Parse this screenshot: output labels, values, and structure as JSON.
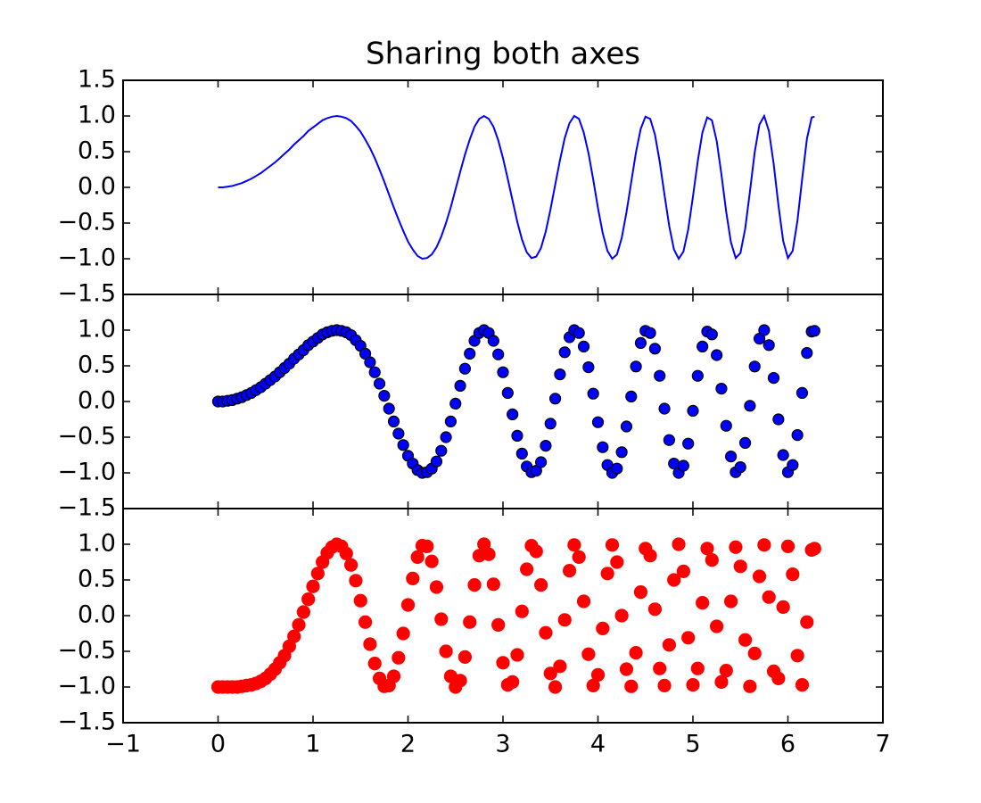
{
  "chart_data": [
    {
      "type": "line",
      "title": "Sharing both axes",
      "color": "#0000ff",
      "x": [
        0,
        0.05,
        0.1,
        0.15,
        0.2,
        0.25,
        0.3,
        0.35,
        0.4,
        0.45,
        0.5,
        0.55,
        0.6,
        0.65,
        0.7,
        0.75,
        0.8,
        0.85,
        0.9,
        0.95,
        1,
        1.05,
        1.1,
        1.15,
        1.2,
        1.25,
        1.3,
        1.35,
        1.4,
        1.45,
        1.5,
        1.55,
        1.6,
        1.65,
        1.7,
        1.75,
        1.8,
        1.85,
        1.9,
        1.95,
        2,
        2.05,
        2.1,
        2.15,
        2.2,
        2.25,
        2.3,
        2.35,
        2.4,
        2.45,
        2.5,
        2.55,
        2.6,
        2.65,
        2.7,
        2.75,
        2.8,
        2.85,
        2.9,
        2.95,
        3,
        3.05,
        3.1,
        3.15,
        3.2,
        3.25,
        3.3,
        3.35,
        3.4,
        3.45,
        3.5,
        3.55,
        3.6,
        3.65,
        3.7,
        3.75,
        3.8,
        3.85,
        3.9,
        3.95,
        4,
        4.05,
        4.1,
        4.15,
        4.2,
        4.25,
        4.3,
        4.35,
        4.4,
        4.45,
        4.5,
        4.55,
        4.6,
        4.65,
        4.7,
        4.75,
        4.8,
        4.85,
        4.9,
        4.95,
        5,
        5.05,
        5.1,
        5.15,
        5.2,
        5.25,
        5.3,
        5.35,
        5.4,
        5.45,
        5.5,
        5.55,
        5.6,
        5.65,
        5.7,
        5.75,
        5.8,
        5.85,
        5.9,
        5.95,
        6,
        6.05,
        6.1,
        6.15,
        6.2,
        6.25,
        6.28
      ],
      "values": [
        0,
        0,
        0.01,
        0.02,
        0.04,
        0.06,
        0.09,
        0.12,
        0.16,
        0.2,
        0.25,
        0.3,
        0.35,
        0.41,
        0.47,
        0.53,
        0.6,
        0.66,
        0.72,
        0.79,
        0.84,
        0.89,
        0.94,
        0.97,
        0.99,
        1,
        0.99,
        0.97,
        0.93,
        0.86,
        0.78,
        0.67,
        0.55,
        0.41,
        0.25,
        0.08,
        -0.1,
        -0.28,
        -0.45,
        -0.61,
        -0.76,
        -0.87,
        -0.96,
        -1,
        -0.99,
        -0.94,
        -0.84,
        -0.69,
        -0.5,
        -0.28,
        -0.03,
        0.22,
        0.46,
        0.67,
        0.85,
        0.96,
        1,
        0.96,
        0.85,
        0.66,
        0.41,
        0.12,
        -0.18,
        -0.48,
        -0.73,
        -0.91,
        -0.99,
        -0.97,
        -0.85,
        -0.62,
        -0.31,
        0.04,
        0.38,
        0.69,
        0.9,
        1,
        0.96,
        0.77,
        0.48,
        0.11,
        -0.29,
        -0.64,
        -0.89,
        -1,
        -0.94,
        -0.71,
        -0.35,
        0.07,
        0.49,
        0.82,
        0.99,
        0.96,
        0.74,
        0.36,
        -0.1,
        -0.54,
        -0.87,
        -1,
        -0.9,
        -0.59,
        -0.13,
        0.36,
        0.77,
        0.98,
        0.94,
        0.65,
        0.18,
        -0.34,
        -0.77,
        -0.99,
        -0.92,
        -0.58,
        -0.06,
        0.49,
        0.88,
        1,
        0.79,
        0.33,
        -0.25,
        -0.75,
        -0.99,
        -0.89,
        -0.47,
        0.12,
        0.68,
        0.98,
        0.99
      ],
      "ylim": [
        -1.5,
        1.5
      ],
      "yticks": [
        {
          "value": -1.5,
          "label": "−1.5"
        },
        {
          "value": -1,
          "label": "−1.0"
        },
        {
          "value": -0.5,
          "label": "−0.5"
        },
        {
          "value": 0,
          "label": "0.0"
        },
        0.5,
        {
          "value": 1,
          "label": "1.0"
        },
        1.5
      ]
    },
    {
      "type": "scatter",
      "color": "#0000ff",
      "edgecolor": "#000000",
      "x": [
        0,
        0.05,
        0.1,
        0.15,
        0.2,
        0.25,
        0.3,
        0.35,
        0.4,
        0.45,
        0.5,
        0.55,
        0.6,
        0.65,
        0.7,
        0.75,
        0.8,
        0.85,
        0.9,
        0.95,
        1,
        1.05,
        1.1,
        1.15,
        1.2,
        1.25,
        1.3,
        1.35,
        1.4,
        1.45,
        1.5,
        1.55,
        1.6,
        1.65,
        1.7,
        1.75,
        1.8,
        1.85,
        1.9,
        1.95,
        2,
        2.05,
        2.1,
        2.15,
        2.2,
        2.25,
        2.3,
        2.35,
        2.4,
        2.45,
        2.5,
        2.55,
        2.6,
        2.65,
        2.7,
        2.75,
        2.8,
        2.85,
        2.9,
        2.95,
        3,
        3.05,
        3.1,
        3.15,
        3.2,
        3.25,
        3.3,
        3.35,
        3.4,
        3.45,
        3.5,
        3.55,
        3.6,
        3.65,
        3.7,
        3.75,
        3.8,
        3.85,
        3.9,
        3.95,
        4,
        4.05,
        4.1,
        4.15,
        4.2,
        4.25,
        4.3,
        4.35,
        4.4,
        4.45,
        4.5,
        4.55,
        4.6,
        4.65,
        4.7,
        4.75,
        4.8,
        4.85,
        4.9,
        4.95,
        5,
        5.05,
        5.1,
        5.15,
        5.2,
        5.25,
        5.3,
        5.35,
        5.4,
        5.45,
        5.5,
        5.55,
        5.6,
        5.65,
        5.7,
        5.75,
        5.8,
        5.85,
        5.9,
        5.95,
        6,
        6.05,
        6.1,
        6.15,
        6.2,
        6.25,
        6.28
      ],
      "values": [
        0,
        0,
        0.01,
        0.02,
        0.04,
        0.06,
        0.09,
        0.12,
        0.16,
        0.2,
        0.25,
        0.3,
        0.35,
        0.41,
        0.47,
        0.53,
        0.6,
        0.66,
        0.72,
        0.79,
        0.84,
        0.89,
        0.94,
        0.97,
        0.99,
        1,
        0.99,
        0.97,
        0.93,
        0.86,
        0.78,
        0.67,
        0.55,
        0.41,
        0.25,
        0.08,
        -0.1,
        -0.28,
        -0.45,
        -0.61,
        -0.76,
        -0.87,
        -0.96,
        -1,
        -0.99,
        -0.94,
        -0.84,
        -0.69,
        -0.5,
        -0.28,
        -0.03,
        0.22,
        0.46,
        0.67,
        0.85,
        0.96,
        1,
        0.96,
        0.85,
        0.66,
        0.41,
        0.12,
        -0.18,
        -0.48,
        -0.73,
        -0.91,
        -0.99,
        -0.97,
        -0.85,
        -0.62,
        -0.31,
        0.04,
        0.38,
        0.69,
        0.9,
        1,
        0.96,
        0.77,
        0.48,
        0.11,
        -0.29,
        -0.64,
        -0.89,
        -1,
        -0.94,
        -0.71,
        -0.35,
        0.07,
        0.49,
        0.82,
        0.99,
        0.96,
        0.74,
        0.36,
        -0.1,
        -0.54,
        -0.87,
        -1,
        -0.9,
        -0.59,
        -0.13,
        0.36,
        0.77,
        0.98,
        0.94,
        0.65,
        0.18,
        -0.34,
        -0.77,
        -0.99,
        -0.92,
        -0.58,
        -0.06,
        0.49,
        0.88,
        1,
        0.79,
        0.33,
        -0.25,
        -0.75,
        -0.99,
        -0.89,
        -0.47,
        0.12,
        0.68,
        0.98,
        0.99
      ],
      "ylim": [
        -1.5,
        1.5
      ],
      "yticks": [
        {
          "value": -1.5,
          "label": "−1.5"
        },
        {
          "value": -1,
          "label": "−1.0"
        },
        {
          "value": -0.5,
          "label": "−0.5"
        },
        {
          "value": 0,
          "label": "0.0"
        },
        0.5,
        {
          "value": 1,
          "label": "1.0"
        }
      ]
    },
    {
      "type": "scatter",
      "color": "#ff0000",
      "x": [
        0,
        0.05,
        0.1,
        0.15,
        0.2,
        0.25,
        0.3,
        0.35,
        0.4,
        0.45,
        0.5,
        0.55,
        0.6,
        0.65,
        0.7,
        0.75,
        0.8,
        0.85,
        0.9,
        0.95,
        1,
        1.05,
        1.1,
        1.15,
        1.2,
        1.25,
        1.3,
        1.35,
        1.4,
        1.45,
        1.5,
        1.55,
        1.6,
        1.65,
        1.7,
        1.75,
        1.8,
        1.85,
        1.9,
        1.95,
        2,
        2.05,
        2.1,
        2.15,
        2.2,
        2.25,
        2.3,
        2.35,
        2.4,
        2.45,
        2.5,
        2.55,
        2.6,
        2.65,
        2.7,
        2.75,
        2.8,
        2.85,
        2.9,
        2.95,
        3,
        3.05,
        3.1,
        3.15,
        3.2,
        3.25,
        3.3,
        3.35,
        3.4,
        3.45,
        3.5,
        3.55,
        3.6,
        3.65,
        3.7,
        3.75,
        3.8,
        3.85,
        3.9,
        3.95,
        4,
        4.05,
        4.1,
        4.15,
        4.2,
        4.25,
        4.3,
        4.35,
        4.4,
        4.45,
        4.5,
        4.55,
        4.6,
        4.65,
        4.7,
        4.75,
        4.8,
        4.85,
        4.9,
        4.95,
        5,
        5.05,
        5.1,
        5.15,
        5.2,
        5.25,
        5.3,
        5.35,
        5.4,
        5.45,
        5.5,
        5.55,
        5.6,
        5.65,
        5.7,
        5.75,
        5.8,
        5.85,
        5.9,
        5.95,
        6,
        6.05,
        6.1,
        6.15,
        6.2,
        6.25,
        6.28
      ],
      "values": [
        -1,
        -1,
        -1,
        -1,
        -1,
        -0.99,
        -0.98,
        -0.97,
        -0.95,
        -0.92,
        -0.88,
        -0.82,
        -0.75,
        -0.66,
        -0.56,
        -0.43,
        -0.29,
        -0.13,
        0.05,
        0.23,
        0.41,
        0.59,
        0.75,
        0.88,
        0.96,
        1,
        0.97,
        0.87,
        0.71,
        0.49,
        0.21,
        -0.09,
        -0.4,
        -0.67,
        -0.88,
        -0.99,
        -0.98,
        -0.85,
        -0.59,
        -0.25,
        0.15,
        0.52,
        0.82,
        0.98,
        0.97,
        0.76,
        0.4,
        -0.05,
        -0.5,
        -0.85,
        -1,
        -0.91,
        -0.58,
        -0.09,
        0.43,
        0.84,
        1,
        0.86,
        0.44,
        -0.13,
        -0.66,
        -0.97,
        -0.93,
        -0.55,
        0.06,
        0.65,
        0.98,
        0.9,
        0.43,
        -0.24,
        -0.81,
        -1,
        -0.71,
        -0.06,
        0.63,
        0.99,
        0.82,
        0.2,
        -0.54,
        -0.98,
        -0.83,
        -0.18,
        0.59,
        0.99,
        0.75,
        0,
        -0.75,
        -0.99,
        -0.52,
        0.33,
        0.94,
        0.84,
        0.09,
        -0.74,
        -0.98,
        -0.41,
        0.5,
        1,
        0.62,
        -0.31,
        -0.97,
        -0.74,
        0.18,
        0.94,
        0.78,
        -0.15,
        -0.93,
        -0.77,
        0.2,
        0.96,
        0.69,
        -0.34,
        -0.99,
        -0.53,
        0.55,
        0.99,
        0.26,
        -0.78,
        -0.88,
        0.12,
        0.97,
        0.58,
        -0.56,
        -0.97,
        -0.09,
        0.92,
        0.94
      ],
      "ylim": [
        -1.5,
        1.5
      ],
      "yticks": [
        {
          "value": -1.5,
          "label": "−1.5"
        },
        {
          "value": -1,
          "label": "−1.0"
        },
        {
          "value": -0.5,
          "label": "−0.5"
        },
        {
          "value": 0,
          "label": "0.0"
        },
        0.5,
        {
          "value": 1,
          "label": "1.0"
        }
      ],
      "xlim": [
        -1,
        7
      ],
      "xticks": [
        {
          "value": -1,
          "label": "−1"
        },
        0,
        1,
        2,
        3,
        4,
        5,
        6,
        7
      ]
    }
  ]
}
